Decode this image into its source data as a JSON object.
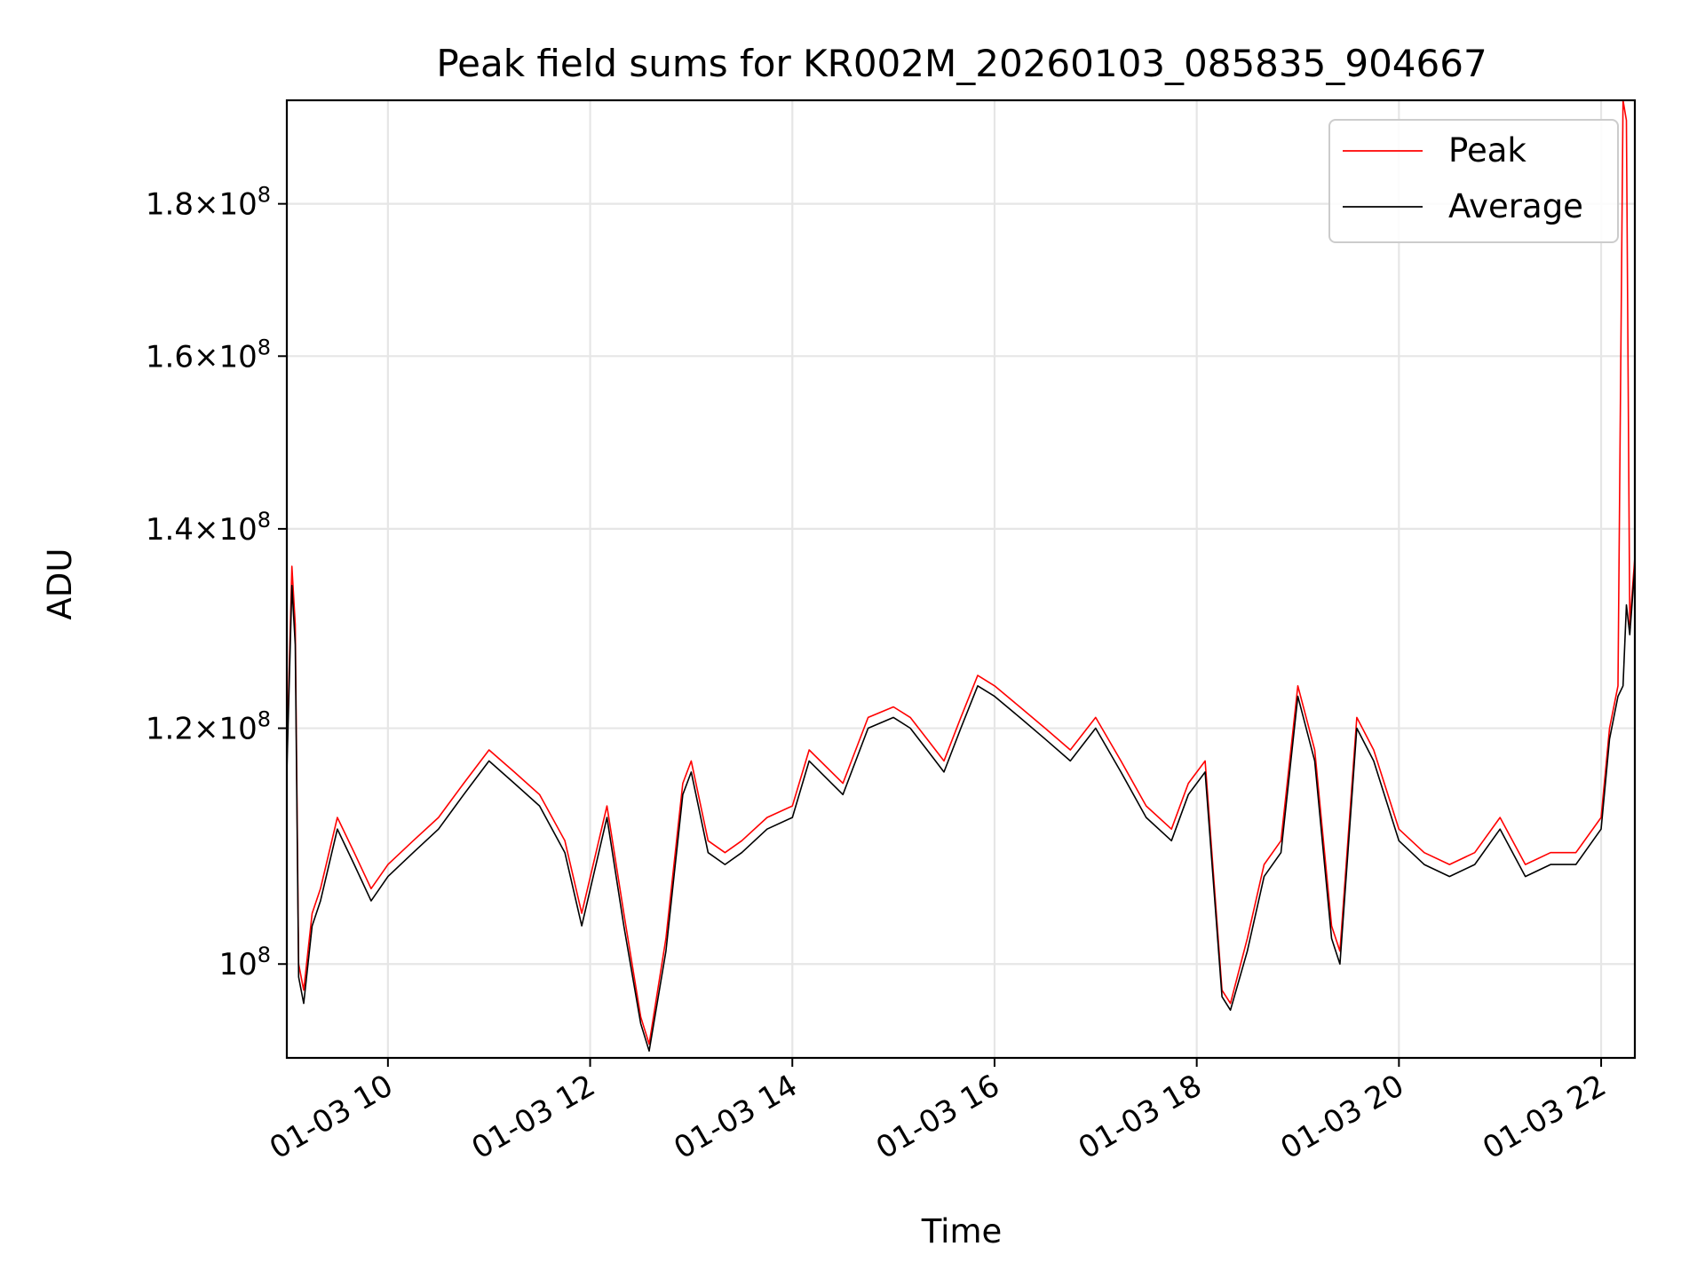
{
  "chart_data": {
    "type": "line",
    "title": "Peak field sums for KR002M_20260103_085835_904667",
    "xlabel": "Time",
    "ylabel": "ADU",
    "x_scale": "time",
    "y_scale": "log",
    "xlim": [
      "2026-01-03 09:00",
      "2026-01-03 22:20"
    ],
    "ylim": [
      93000000,
      195000000
    ],
    "grid": true,
    "legend_position": "top-right",
    "x_ticks": [
      {
        "value": "2026-01-03 10:00",
        "label": "01-03 10"
      },
      {
        "value": "2026-01-03 12:00",
        "label": "01-03 12"
      },
      {
        "value": "2026-01-03 14:00",
        "label": "01-03 14"
      },
      {
        "value": "2026-01-03 16:00",
        "label": "01-03 16"
      },
      {
        "value": "2026-01-03 18:00",
        "label": "01-03 18"
      },
      {
        "value": "2026-01-03 20:00",
        "label": "01-03 20"
      },
      {
        "value": "2026-01-03 22:00",
        "label": "01-03 22"
      }
    ],
    "y_ticks": [
      {
        "value": 100000000,
        "mantissa": "",
        "exponent": "8"
      },
      {
        "value": 120000000,
        "mantissa": "1.2",
        "exponent": "8"
      },
      {
        "value": 140000000,
        "mantissa": "1.4",
        "exponent": "8"
      },
      {
        "value": 160000000,
        "mantissa": "1.6",
        "exponent": "8"
      },
      {
        "value": 180000000,
        "mantissa": "1.8",
        "exponent": "8"
      }
    ],
    "series": [
      {
        "name": "Peak",
        "color": "#ff0000",
        "x": [
          "2026-01-03 09:00",
          "2026-01-03 09:03",
          "2026-01-03 09:05",
          "2026-01-03 09:07",
          "2026-01-03 09:10",
          "2026-01-03 09:15",
          "2026-01-03 09:20",
          "2026-01-03 09:30",
          "2026-01-03 09:40",
          "2026-01-03 09:50",
          "2026-01-03 10:00",
          "2026-01-03 10:15",
          "2026-01-03 10:30",
          "2026-01-03 10:45",
          "2026-01-03 11:00",
          "2026-01-03 11:15",
          "2026-01-03 11:30",
          "2026-01-03 11:45",
          "2026-01-03 11:55",
          "2026-01-03 12:10",
          "2026-01-03 12:20",
          "2026-01-03 12:30",
          "2026-01-03 12:35",
          "2026-01-03 12:45",
          "2026-01-03 12:55",
          "2026-01-03 13:00",
          "2026-01-03 13:10",
          "2026-01-03 13:20",
          "2026-01-03 13:30",
          "2026-01-03 13:45",
          "2026-01-03 14:00",
          "2026-01-03 14:10",
          "2026-01-03 14:30",
          "2026-01-03 14:45",
          "2026-01-03 15:00",
          "2026-01-03 15:10",
          "2026-01-03 15:20",
          "2026-01-03 15:30",
          "2026-01-03 15:40",
          "2026-01-03 15:50",
          "2026-01-03 16:00",
          "2026-01-03 16:15",
          "2026-01-03 16:30",
          "2026-01-03 16:45",
          "2026-01-03 17:00",
          "2026-01-03 17:15",
          "2026-01-03 17:30",
          "2026-01-03 17:45",
          "2026-01-03 17:55",
          "2026-01-03 18:05",
          "2026-01-03 18:15",
          "2026-01-03 18:20",
          "2026-01-03 18:30",
          "2026-01-03 18:40",
          "2026-01-03 18:50",
          "2026-01-03 19:00",
          "2026-01-03 19:10",
          "2026-01-03 19:20",
          "2026-01-03 19:25",
          "2026-01-03 19:35",
          "2026-01-03 19:45",
          "2026-01-03 20:00",
          "2026-01-03 20:15",
          "2026-01-03 20:30",
          "2026-01-03 20:45",
          "2026-01-03 21:00",
          "2026-01-03 21:15",
          "2026-01-03 21:30",
          "2026-01-03 21:45",
          "2026-01-03 22:00",
          "2026-01-03 22:05",
          "2026-01-03 22:10",
          "2026-01-03 22:13",
          "2026-01-03 22:15",
          "2026-01-03 22:17",
          "2026-01-03 22:20"
        ],
        "y": [
          117000000,
          136000000,
          130000000,
          100000000,
          98000000,
          104000000,
          106000000,
          112000000,
          109000000,
          106000000,
          108000000,
          110000000,
          112000000,
          115000000,
          118000000,
          116000000,
          114000000,
          110000000,
          104000000,
          113000000,
          104000000,
          96000000,
          94000000,
          102000000,
          115000000,
          117000000,
          110000000,
          109000000,
          110000000,
          112000000,
          113000000,
          118000000,
          115000000,
          121000000,
          122000000,
          121000000,
          119000000,
          117000000,
          121000000,
          125000000,
          124000000,
          122000000,
          120000000,
          118000000,
          121000000,
          117000000,
          113000000,
          111000000,
          115000000,
          117000000,
          98000000,
          97000000,
          102000000,
          108000000,
          110000000,
          124000000,
          118000000,
          103000000,
          101000000,
          121000000,
          118000000,
          111000000,
          109000000,
          108000000,
          109000000,
          112000000,
          108000000,
          109000000,
          109000000,
          112000000,
          120000000,
          124000000,
          195000000,
          192000000,
          130000000,
          137000000
        ]
      },
      {
        "name": "Average",
        "color": "#000000",
        "x": [
          "2026-01-03 09:00",
          "2026-01-03 09:03",
          "2026-01-03 09:05",
          "2026-01-03 09:07",
          "2026-01-03 09:10",
          "2026-01-03 09:15",
          "2026-01-03 09:20",
          "2026-01-03 09:30",
          "2026-01-03 09:40",
          "2026-01-03 09:50",
          "2026-01-03 10:00",
          "2026-01-03 10:15",
          "2026-01-03 10:30",
          "2026-01-03 10:45",
          "2026-01-03 11:00",
          "2026-01-03 11:15",
          "2026-01-03 11:30",
          "2026-01-03 11:45",
          "2026-01-03 11:55",
          "2026-01-03 12:10",
          "2026-01-03 12:20",
          "2026-01-03 12:30",
          "2026-01-03 12:35",
          "2026-01-03 12:45",
          "2026-01-03 12:55",
          "2026-01-03 13:00",
          "2026-01-03 13:10",
          "2026-01-03 13:20",
          "2026-01-03 13:30",
          "2026-01-03 13:45",
          "2026-01-03 14:00",
          "2026-01-03 14:10",
          "2026-01-03 14:30",
          "2026-01-03 14:45",
          "2026-01-03 15:00",
          "2026-01-03 15:10",
          "2026-01-03 15:20",
          "2026-01-03 15:30",
          "2026-01-03 15:40",
          "2026-01-03 15:50",
          "2026-01-03 16:00",
          "2026-01-03 16:15",
          "2026-01-03 16:30",
          "2026-01-03 16:45",
          "2026-01-03 17:00",
          "2026-01-03 17:15",
          "2026-01-03 17:30",
          "2026-01-03 17:45",
          "2026-01-03 17:55",
          "2026-01-03 18:05",
          "2026-01-03 18:15",
          "2026-01-03 18:20",
          "2026-01-03 18:30",
          "2026-01-03 18:40",
          "2026-01-03 18:50",
          "2026-01-03 19:00",
          "2026-01-03 19:10",
          "2026-01-03 19:20",
          "2026-01-03 19:25",
          "2026-01-03 19:35",
          "2026-01-03 19:45",
          "2026-01-03 20:00",
          "2026-01-03 20:15",
          "2026-01-03 20:30",
          "2026-01-03 20:45",
          "2026-01-03 21:00",
          "2026-01-03 21:15",
          "2026-01-03 21:30",
          "2026-01-03 21:45",
          "2026-01-03 22:00",
          "2026-01-03 22:05",
          "2026-01-03 22:10",
          "2026-01-03 22:13",
          "2026-01-03 22:15",
          "2026-01-03 22:17",
          "2026-01-03 22:20"
        ],
        "y": [
          116000000,
          134000000,
          128000000,
          99000000,
          97000000,
          103000000,
          105000000,
          111000000,
          108000000,
          105000000,
          107000000,
          109000000,
          111000000,
          114000000,
          117000000,
          115000000,
          113000000,
          109000000,
          103000000,
          112000000,
          103000000,
          95500000,
          93500000,
          101000000,
          114000000,
          116000000,
          109000000,
          108000000,
          109000000,
          111000000,
          112000000,
          117000000,
          114000000,
          120000000,
          121000000,
          120000000,
          118000000,
          116000000,
          120000000,
          124000000,
          123000000,
          121000000,
          119000000,
          117000000,
          120000000,
          116000000,
          112000000,
          110000000,
          114000000,
          116000000,
          97500000,
          96500000,
          101000000,
          107000000,
          109000000,
          123000000,
          117000000,
          102000000,
          100000000,
          120000000,
          117000000,
          110000000,
          108000000,
          107000000,
          108000000,
          111000000,
          107000000,
          108000000,
          108000000,
          111000000,
          119000000,
          123000000,
          124000000,
          132000000,
          129000000,
          136000000
        ]
      }
    ]
  }
}
